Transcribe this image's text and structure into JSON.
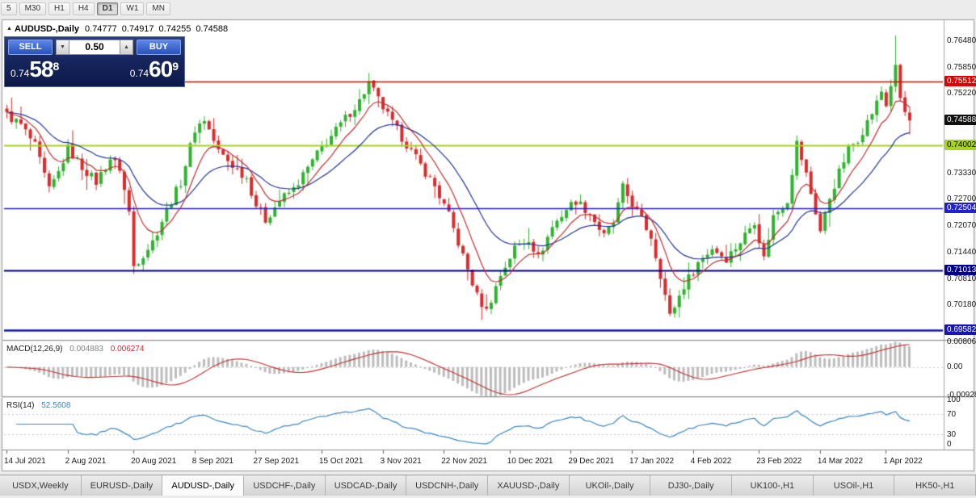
{
  "icons": {
    "expand": "▲",
    "spin_up": "▲",
    "spin_down": "▼"
  },
  "toolbar": {
    "timeframes": [
      {
        "label": "5",
        "active": false
      },
      {
        "label": "M30",
        "active": false
      },
      {
        "label": "H1",
        "active": false
      },
      {
        "label": "H4",
        "active": false
      },
      {
        "label": "D1",
        "active": true
      },
      {
        "label": "W1",
        "active": false
      },
      {
        "label": "MN",
        "active": false
      }
    ]
  },
  "chart_header": {
    "collapse_icon": "▲",
    "symbol": "AUDUSD-,Daily",
    "open": "0.74777",
    "high": "0.74917",
    "low": "0.74255",
    "close": "0.74588"
  },
  "trade_panel": {
    "sell_label": "SELL",
    "buy_label": "BUY",
    "volume": "0.50",
    "sell_price": {
      "prefix": "0.74",
      "big": "58",
      "sup": "8"
    },
    "buy_price": {
      "prefix": "0.74",
      "big": "60",
      "sup": "9"
    }
  },
  "price_axis": {
    "ticks": [
      "0.76480",
      "0.75850",
      "0.75220",
      "0.73330",
      "0.72700",
      "0.72070",
      "0.71440",
      "0.70810",
      "0.70180"
    ],
    "boxes": [
      {
        "label": "0.75512",
        "price": 0.75512,
        "bg": "#e00000",
        "fg": "#ffffff",
        "kind": "resistance-level"
      },
      {
        "label": "0.74588",
        "price": 0.74588,
        "bg": "#111111",
        "fg": "#ffffff",
        "kind": "current-price"
      },
      {
        "label": "0.74002",
        "price": 0.74002,
        "bg": "#a8d420",
        "fg": "#000000",
        "kind": "support-level"
      },
      {
        "label": "0.72504",
        "price": 0.72504,
        "bg": "#2222cc",
        "fg": "#ffffff",
        "kind": "support-level"
      },
      {
        "label": "0.71013",
        "price": 0.71013,
        "bg": "#000090",
        "fg": "#ffffff",
        "kind": "support-level"
      },
      {
        "label": "0.69582",
        "price": 0.69582,
        "bg": "#1515bb",
        "fg": "#ffffff",
        "kind": "support-level"
      }
    ]
  },
  "indicators": {
    "macd": {
      "title": "MACD(12,26,9)",
      "value1": "0.004883",
      "value2": "0.006274",
      "axis": [
        {
          "label": "0.008061",
          "v": 0.008061
        },
        {
          "label": "0.00",
          "v": 0
        },
        {
          "label": "-0.00928",
          "v": -0.00928
        }
      ]
    },
    "rsi": {
      "title": "RSI(14)",
      "value": "52.5608",
      "levels": [
        70,
        30
      ],
      "axis": [
        {
          "label": "100",
          "v": 100
        },
        {
          "label": "70",
          "v": 70
        },
        {
          "label": "30",
          "v": 30
        },
        {
          "label": "0",
          "v": 0
        }
      ]
    }
  },
  "date_axis": [
    {
      "label": "14 Jul 2021",
      "bar": 0
    },
    {
      "label": "2 Aug 2021",
      "bar": 13
    },
    {
      "label": "20 Aug 2021",
      "bar": 27
    },
    {
      "label": "8 Sep 2021",
      "bar": 40
    },
    {
      "label": "27 Sep 2021",
      "bar": 53
    },
    {
      "label": "15 Oct 2021",
      "bar": 67
    },
    {
      "label": "3 Nov 2021",
      "bar": 80
    },
    {
      "label": "22 Nov 2021",
      "bar": 93
    },
    {
      "label": "10 Dec 2021",
      "bar": 107
    },
    {
      "label": "29 Dec 2021",
      "bar": 120
    },
    {
      "label": "17 Jan 2022",
      "bar": 133
    },
    {
      "label": "4 Feb 2022",
      "bar": 146
    },
    {
      "label": "23 Feb 2022",
      "bar": 160
    },
    {
      "label": "14 Mar 2022",
      "bar": 173
    },
    {
      "label": "1 Apr 2022",
      "bar": 187
    }
  ],
  "tabs": [
    {
      "label": "USDX,Weekly",
      "active": false
    },
    {
      "label": "EURUSD-,Daily",
      "active": false
    },
    {
      "label": "AUDUSD-,Daily",
      "active": true
    },
    {
      "label": "USDCHF-,Daily",
      "active": false
    },
    {
      "label": "USDCAD-,Daily",
      "active": false
    },
    {
      "label": "USDCNH-,Daily",
      "active": false
    },
    {
      "label": "XAUUSD-,Daily",
      "active": false
    },
    {
      "label": "UKOil-,Daily",
      "active": false
    },
    {
      "label": "DJ30-,Daily",
      "active": false
    },
    {
      "label": "UK100-,H1",
      "active": false
    },
    {
      "label": "USOil-,H1",
      "active": false
    },
    {
      "label": "HK50-,H1",
      "active": false
    }
  ],
  "chart_data": {
    "type": "candlestick",
    "symbol": "AUDUSD",
    "timeframe": "Daily",
    "bar_count": 193,
    "price_range": {
      "max": 0.7692,
      "min": 0.6938
    },
    "last_bar": {
      "open": 0.74777,
      "high": 0.74917,
      "low": 0.74255,
      "close": 0.74588
    },
    "spike": {
      "bar": 189,
      "high": 0.7661
    },
    "levels": [
      {
        "price": 0.75512,
        "color": "#e00000",
        "width": 1.5
      },
      {
        "price": 0.74002,
        "color": "#a8d420",
        "width": 2
      },
      {
        "price": 0.72504,
        "color": "#2222cc",
        "width": 1.5
      },
      {
        "price": 0.71013,
        "color": "#000090",
        "width": 2
      },
      {
        "price": 0.69582,
        "color": "#1515bb",
        "width": 2.5
      }
    ],
    "up_color": "#2eb42e",
    "down_color": "#dd2a2a",
    "ma_fast": {
      "period": 8,
      "color": "#c43030"
    },
    "ma_slow": {
      "period": 21,
      "color": "#24349c"
    },
    "macd_params": {
      "fast": 12,
      "slow": 26,
      "signal": 9,
      "hist_color": "#bdbdbd",
      "signal_color": "#c43030"
    },
    "rsi_params": {
      "period": 14,
      "color": "#3a86c4"
    },
    "close_waypoints": [
      [
        0,
        0.7472
      ],
      [
        3,
        0.7448
      ],
      [
        6,
        0.7398
      ],
      [
        9,
        0.7292
      ],
      [
        11,
        0.7335
      ],
      [
        13,
        0.7392
      ],
      [
        16,
        0.7348
      ],
      [
        19,
        0.7312
      ],
      [
        22,
        0.7368
      ],
      [
        24,
        0.7345
      ],
      [
        26,
        0.724
      ],
      [
        27,
        0.7112
      ],
      [
        29,
        0.714
      ],
      [
        31,
        0.717
      ],
      [
        34,
        0.7245
      ],
      [
        37,
        0.7312
      ],
      [
        40,
        0.7438
      ],
      [
        42,
        0.7462
      ],
      [
        45,
        0.7385
      ],
      [
        48,
        0.7352
      ],
      [
        51,
        0.7322
      ],
      [
        53,
        0.7258
      ],
      [
        55,
        0.7222
      ],
      [
        58,
        0.7268
      ],
      [
        61,
        0.7295
      ],
      [
        64,
        0.7345
      ],
      [
        67,
        0.7395
      ],
      [
        70,
        0.7435
      ],
      [
        73,
        0.7478
      ],
      [
        75,
        0.7505
      ],
      [
        77,
        0.7548
      ],
      [
        79,
        0.7508
      ],
      [
        82,
        0.7452
      ],
      [
        85,
        0.7402
      ],
      [
        88,
        0.7352
      ],
      [
        91,
        0.7302
      ],
      [
        94,
        0.7232
      ],
      [
        97,
        0.7135
      ],
      [
        100,
        0.704
      ],
      [
        102,
        0.7005
      ],
      [
        105,
        0.709
      ],
      [
        108,
        0.7155
      ],
      [
        111,
        0.7178
      ],
      [
        113,
        0.7132
      ],
      [
        116,
        0.7205
      ],
      [
        119,
        0.7248
      ],
      [
        121,
        0.7268
      ],
      [
        124,
        0.7238
      ],
      [
        127,
        0.7182
      ],
      [
        129,
        0.7215
      ],
      [
        131,
        0.7298
      ],
      [
        134,
        0.7242
      ],
      [
        137,
        0.7182
      ],
      [
        139,
        0.7092
      ],
      [
        141,
        0.6992
      ],
      [
        144,
        0.7065
      ],
      [
        147,
        0.712
      ],
      [
        150,
        0.7155
      ],
      [
        153,
        0.713
      ],
      [
        156,
        0.717
      ],
      [
        159,
        0.722
      ],
      [
        161,
        0.713
      ],
      [
        163,
        0.723
      ],
      [
        166,
        0.727
      ],
      [
        168,
        0.7405
      ],
      [
        170,
        0.733
      ],
      [
        173,
        0.7195
      ],
      [
        175,
        0.7275
      ],
      [
        177,
        0.7335
      ],
      [
        179,
        0.739
      ],
      [
        181,
        0.7415
      ],
      [
        183,
        0.7455
      ],
      [
        185,
        0.75
      ],
      [
        186,
        0.7528
      ],
      [
        187,
        0.7495
      ],
      [
        188,
        0.7542
      ],
      [
        189,
        0.7588
      ],
      [
        190,
        0.7512
      ],
      [
        191,
        0.7478
      ],
      [
        192,
        0.7459
      ]
    ]
  }
}
